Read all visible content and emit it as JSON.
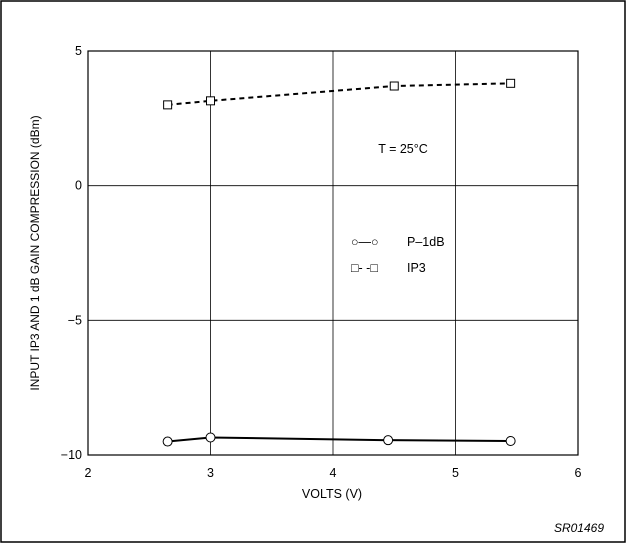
{
  "chart_data": {
    "type": "line",
    "xlabel": "VOLTS (V)",
    "ylabel": "INPUT IP3 AND 1 dB GAIN COMPRESSION (dBm)",
    "xlim": [
      2,
      6
    ],
    "ylim": [
      -10,
      5
    ],
    "xticks": [
      2,
      3,
      4,
      5,
      6
    ],
    "yticks": [
      5,
      0,
      -5,
      -10
    ],
    "xtick_labels": [
      "2",
      "3",
      "4",
      "5",
      "6"
    ],
    "ytick_labels": [
      "5",
      "0",
      "−5",
      "−10"
    ],
    "grid": true,
    "annotation": "T = 25°C",
    "series": [
      {
        "name": "P–1dB",
        "marker": "circle",
        "linestyle": "solid",
        "x": [
          2.65,
          3.0,
          4.45,
          5.45
        ],
        "y": [
          -9.5,
          -9.35,
          -9.45,
          -9.48
        ]
      },
      {
        "name": "IP3",
        "marker": "square",
        "linestyle": "dashed",
        "x": [
          2.65,
          3.0,
          4.5,
          5.45
        ],
        "y": [
          3.0,
          3.15,
          3.7,
          3.8
        ]
      }
    ],
    "legend_entries": [
      {
        "symbol_text": "○—○",
        "label": "P–1dB"
      },
      {
        "symbol_text": "□- -□",
        "label": "IP3"
      }
    ],
    "legend_position": "center-right",
    "figure_id": "SR01469"
  }
}
